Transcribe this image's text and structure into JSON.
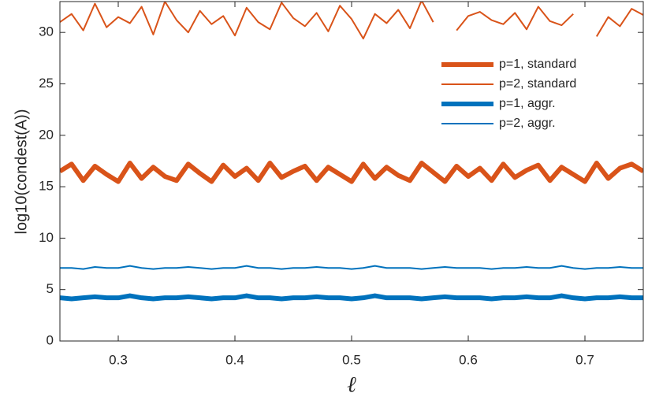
{
  "chart_data": {
    "type": "line",
    "x_label": "ℓ",
    "y_label": "log10(condest(A))",
    "x": [
      0.25,
      0.26,
      0.27,
      0.28,
      0.29,
      0.3,
      0.31,
      0.32,
      0.33,
      0.34,
      0.35,
      0.36,
      0.37,
      0.38,
      0.39,
      0.4,
      0.41,
      0.42,
      0.43,
      0.44,
      0.45,
      0.46,
      0.47,
      0.48,
      0.49,
      0.5,
      0.51,
      0.52,
      0.53,
      0.54,
      0.55,
      0.56,
      0.57,
      0.58,
      0.59,
      0.6,
      0.61,
      0.62,
      0.63,
      0.64,
      0.65,
      0.66,
      0.67,
      0.68,
      0.69,
      0.7,
      0.71,
      0.72,
      0.73,
      0.74,
      0.75
    ],
    "series": [
      {
        "name": "p=1, standard",
        "color": "#d95319",
        "line_width": 6,
        "values": [
          16.5,
          17.2,
          15.6,
          17.0,
          16.2,
          15.5,
          17.3,
          15.8,
          16.9,
          16.0,
          15.6,
          17.2,
          16.3,
          15.5,
          17.1,
          16.0,
          16.8,
          15.6,
          17.3,
          15.9,
          16.5,
          17.0,
          15.6,
          16.9,
          16.2,
          15.5,
          17.2,
          15.8,
          16.9,
          16.1,
          15.6,
          17.3,
          16.4,
          15.5,
          17.0,
          16.0,
          16.8,
          15.6,
          17.2,
          15.9,
          16.6,
          17.1,
          15.6,
          16.9,
          16.2,
          15.5,
          17.3,
          15.8,
          16.8,
          17.2,
          16.5
        ]
      },
      {
        "name": "p=2, standard",
        "color": "#d95319",
        "line_width": 2,
        "values": [
          31.0,
          31.8,
          30.2,
          32.8,
          30.5,
          31.5,
          30.9,
          32.5,
          29.8,
          33.0,
          31.2,
          30.0,
          32.1,
          30.8,
          31.6,
          29.7,
          32.4,
          31.0,
          30.3,
          32.9,
          31.4,
          30.6,
          31.9,
          30.1,
          32.6,
          31.3,
          29.4,
          31.8,
          30.9,
          32.2,
          30.4,
          33.1,
          31.0,
          null,
          30.2,
          31.6,
          32.0,
          31.2,
          30.8,
          31.9,
          30.3,
          32.5,
          31.1,
          30.7,
          31.8,
          null,
          29.6,
          31.5,
          30.6,
          32.3,
          31.7
        ]
      },
      {
        "name": "p=1, aggr.",
        "color": "#0072bd",
        "line_width": 6,
        "values": [
          4.2,
          4.1,
          4.2,
          4.3,
          4.2,
          4.2,
          4.4,
          4.2,
          4.1,
          4.2,
          4.2,
          4.3,
          4.2,
          4.1,
          4.2,
          4.2,
          4.4,
          4.2,
          4.2,
          4.1,
          4.2,
          4.2,
          4.3,
          4.2,
          4.2,
          4.1,
          4.2,
          4.4,
          4.2,
          4.2,
          4.2,
          4.1,
          4.2,
          4.3,
          4.2,
          4.2,
          4.2,
          4.1,
          4.2,
          4.2,
          4.3,
          4.2,
          4.2,
          4.4,
          4.2,
          4.1,
          4.2,
          4.2,
          4.3,
          4.2,
          4.2
        ]
      },
      {
        "name": "p=2, aggr.",
        "color": "#0072bd",
        "line_width": 2,
        "values": [
          7.1,
          7.1,
          7.0,
          7.2,
          7.1,
          7.1,
          7.3,
          7.1,
          7.0,
          7.1,
          7.1,
          7.2,
          7.1,
          7.0,
          7.1,
          7.1,
          7.3,
          7.1,
          7.1,
          7.0,
          7.1,
          7.1,
          7.2,
          7.1,
          7.1,
          7.0,
          7.1,
          7.3,
          7.1,
          7.1,
          7.1,
          7.0,
          7.1,
          7.2,
          7.1,
          7.1,
          7.1,
          7.0,
          7.1,
          7.1,
          7.2,
          7.1,
          7.1,
          7.3,
          7.1,
          7.0,
          7.1,
          7.1,
          7.2,
          7.1,
          7.1
        ]
      }
    ],
    "xlim": [
      0.25,
      0.75
    ],
    "xticks": [
      0.3,
      0.4,
      0.5,
      0.6,
      0.7
    ],
    "ylim": [
      0,
      33
    ],
    "yticks": [
      0,
      5,
      10,
      15,
      20,
      25,
      30
    ],
    "legend": "upper right",
    "grid": false
  }
}
